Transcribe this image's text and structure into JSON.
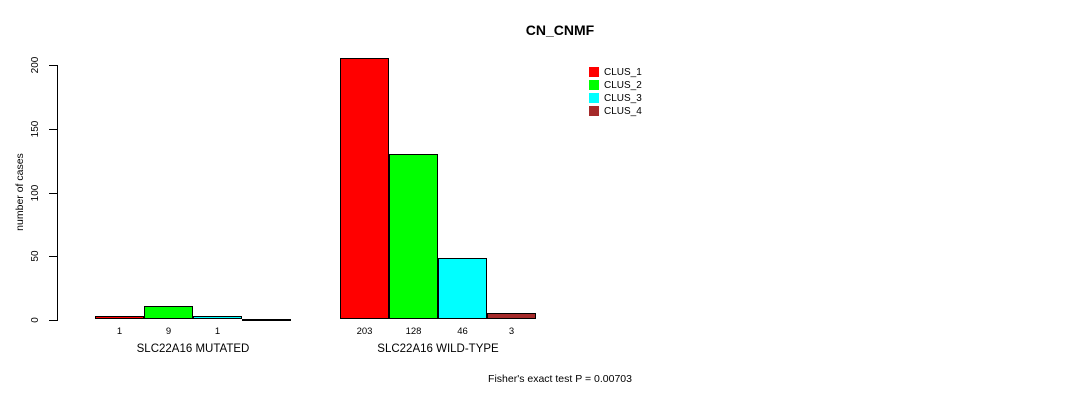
{
  "chart_data": {
    "type": "bar",
    "title": "CN_CNMF",
    "ylabel": "number of cases",
    "xlabel": "",
    "ylim": [
      0,
      200
    ],
    "yticks": [
      "0",
      "50",
      "100",
      "150",
      "200"
    ],
    "grid": false,
    "legend_position": "top-right",
    "categories": [
      "SLC22A16 MUTATED",
      "SLC22A16 WILD-TYPE"
    ],
    "series": [
      {
        "name": "CLUS_1",
        "color": "#FF0000",
        "values": [
          1,
          203
        ]
      },
      {
        "name": "CLUS_2",
        "color": "#00FF00",
        "values": [
          9,
          128
        ]
      },
      {
        "name": "CLUS_3",
        "color": "#00FFFF",
        "values": [
          1,
          46
        ]
      },
      {
        "name": "CLUS_4",
        "color": "#A52A2A",
        "values": [
          0,
          3
        ]
      }
    ],
    "groups": [
      {
        "label": "SLC22A16 MUTATED",
        "values": [
          1,
          9,
          1,
          0
        ],
        "bar_labels": [
          "1",
          "9",
          "1",
          ""
        ]
      },
      {
        "label": "SLC22A16 WILD-TYPE",
        "values": [
          203,
          128,
          46,
          3
        ],
        "bar_labels": [
          "203",
          "128",
          "46",
          "3"
        ]
      }
    ],
    "legend": [
      {
        "label": "CLUS_1",
        "color": "#FF0000"
      },
      {
        "label": "CLUS_2",
        "color": "#00FF00"
      },
      {
        "label": "CLUS_3",
        "color": "#00FFFF"
      },
      {
        "label": "CLUS_4",
        "color": "#A52A2A"
      }
    ],
    "footer": "Fisher's exact test P = 0.00703"
  },
  "colors": {
    "axis": "#000000",
    "text": "#000000",
    "background": "#FFFFFF"
  }
}
